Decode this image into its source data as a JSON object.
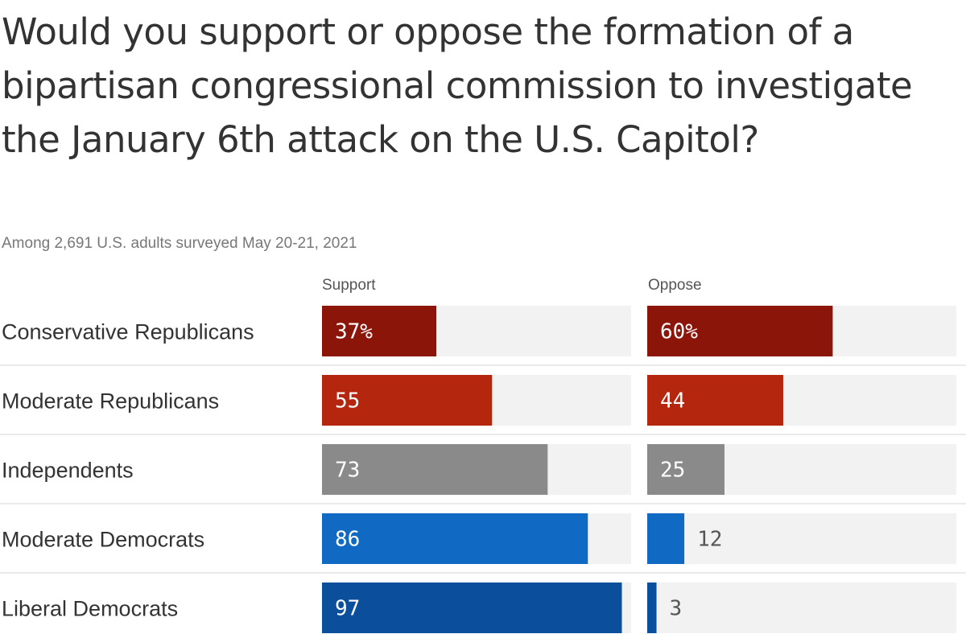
{
  "chart_data": {
    "type": "bar",
    "title": "Would you support or oppose the formation of a bipartisan congressional commission to investigate the January 6th attack on the U.S. Capitol?",
    "subtitle": "Among 2,691 U.S. adults surveyed May 20-21, 2021",
    "columns": [
      "Support",
      "Oppose"
    ],
    "categories": [
      "Conservative Republicans",
      "Moderate Republicans",
      "Independents",
      "Moderate Democrats",
      "Liberal Democrats"
    ],
    "series": [
      {
        "name": "Support",
        "values": [
          37,
          55,
          73,
          86,
          97
        ],
        "labels": [
          "37%",
          "55",
          "73",
          "86",
          "97"
        ]
      },
      {
        "name": "Oppose",
        "values": [
          60,
          44,
          25,
          12,
          3
        ],
        "labels": [
          "60%",
          "44",
          "25",
          "12",
          "3"
        ]
      }
    ],
    "xlim": [
      0,
      100
    ],
    "row_colors": [
      "#8b1509",
      "#b5260f",
      "#8a8a8a",
      "#1069c2",
      "#0a4e9c"
    ],
    "track_color": "#f2f2f2",
    "divider_color": "#e4e4e4"
  }
}
